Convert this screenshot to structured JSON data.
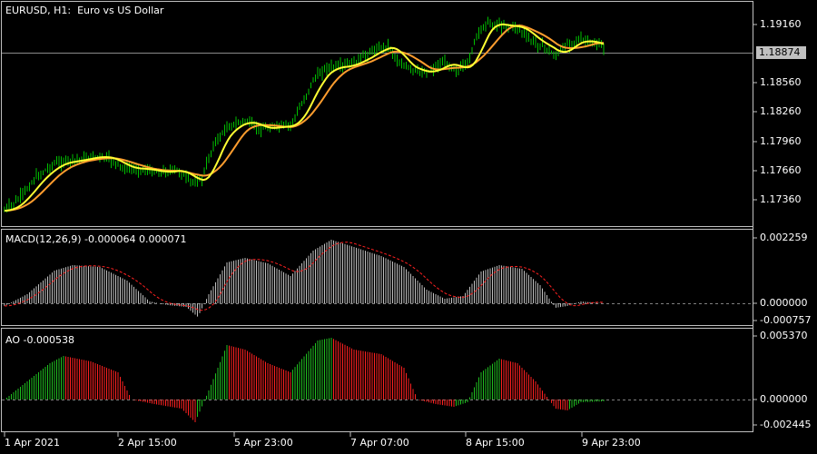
{
  "colors": {
    "background": "#000000",
    "frame": "#c0c0c0",
    "bull_candle": "#00c000",
    "ma_fast": "#ffff33",
    "ma_slow": "#ff9d2e",
    "macd_hist": "#c0c0c0",
    "macd_signal": "#ff2020",
    "ao_up": "#1fbf1f",
    "ao_down": "#ff2020",
    "zero_line": "#808080"
  },
  "price_panel": {
    "title": "EURUSD, H1:  Euro vs US Dollar",
    "current_price": "1.18874",
    "axis_labels": [
      "1.19160",
      "1.18560",
      "1.18260",
      "1.17960",
      "1.17660",
      "1.17360"
    ]
  },
  "macd_panel": {
    "title": "MACD(12,26,9) -0.000064 0.000071",
    "axis_labels": [
      "0.002259",
      "0.000000",
      "-0.000757"
    ]
  },
  "ao_panel": {
    "title": "AO -0.000538",
    "axis_labels": [
      "0.005370",
      "0.000000",
      "-0.002445"
    ]
  },
  "time_axis": [
    "1 Apr 2021",
    "2 Apr 15:00",
    "5 Apr 23:00",
    "7 Apr 07:00",
    "8 Apr 15:00",
    "9 Apr 23:00"
  ]
}
